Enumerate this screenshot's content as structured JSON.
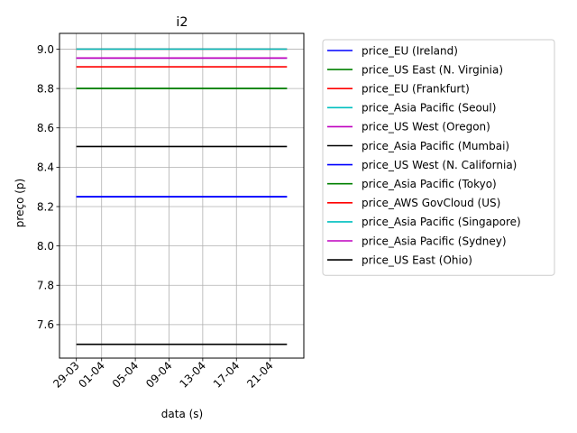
{
  "chart_data": {
    "type": "line",
    "title": "i2",
    "xlabel": "data (s)",
    "ylabel": "preço (p)",
    "x_ticks": [
      "29-03",
      "01-04",
      "05-04",
      "09-04",
      "13-04",
      "17-04",
      "21-04"
    ],
    "x_range": [
      "29-03",
      "23-04"
    ],
    "xlim": [
      "27-03",
      "25-04"
    ],
    "ylim": [
      7.43,
      9.08
    ],
    "y_ticks": [
      "7.6",
      "7.8",
      "8.0",
      "8.2",
      "8.4",
      "8.6",
      "8.8",
      "9.0"
    ],
    "grid": true,
    "legend_position": "outside-right",
    "series": [
      {
        "name": "price_EU (Ireland)",
        "color": "#0000ff",
        "value": 8.25
      },
      {
        "name": "price_US East (N. Virginia)",
        "color": "#008000",
        "value": 8.8
      },
      {
        "name": "price_EU (Frankfurt)",
        "color": "#ff0000",
        "value": 9.0
      },
      {
        "name": "price_Asia Pacific (Seoul)",
        "color": "#00bfbf",
        "value": 8.955
      },
      {
        "name": "price_US West (Oregon)",
        "color": "#bf00bf",
        "value": 8.955
      },
      {
        "name": "price_Asia Pacific (Mumbai)",
        "color": "#000000",
        "value": 8.505
      },
      {
        "name": "price_US West (N. California)",
        "color": "#0000ff",
        "value": 8.25
      },
      {
        "name": "price_Asia Pacific (Tokyo)",
        "color": "#008000",
        "value": 8.8
      },
      {
        "name": "price_AWS GovCloud (US)",
        "color": "#ff0000",
        "value": 8.91
      },
      {
        "name": "price_Asia Pacific (Singapore)",
        "color": "#00bfbf",
        "value": 9.0
      },
      {
        "name": "price_Asia Pacific (Sydney)",
        "color": "#bf00bf",
        "value": 8.955
      },
      {
        "name": "price_US East (Ohio)",
        "color": "#000000",
        "value": 7.5
      }
    ]
  }
}
